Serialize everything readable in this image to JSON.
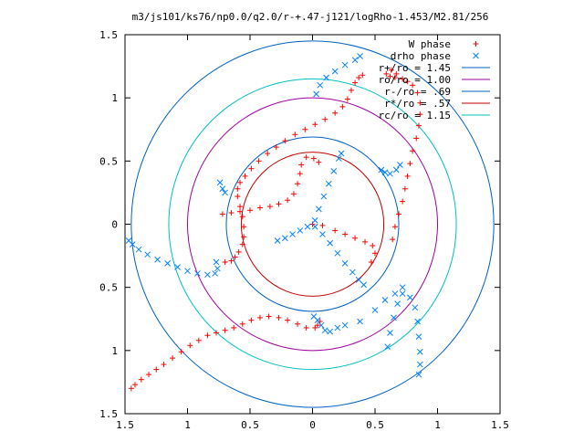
{
  "chart_data": {
    "type": "scatter",
    "title": "m3/js101/ks76/np0.0/q2.0/r-+.47-j121/logRho-1.453/M2.81/256",
    "xlabel": "",
    "ylabel": "",
    "xlim": [
      -1.5,
      1.5
    ],
    "ylim": [
      -1.5,
      1.5
    ],
    "xticks": [
      -1.5,
      -1,
      -0.5,
      0,
      0.5,
      1,
      1.5
    ],
    "yticks": [
      -1.5,
      -1,
      -0.5,
      0,
      0.5,
      1,
      1.5
    ],
    "xtick_labels": [
      "1.5",
      "1",
      "0.5",
      "0",
      "0.5",
      "1",
      "1.5"
    ],
    "ytick_labels": [
      "1.5",
      "1",
      "0.5",
      "0",
      "0.5",
      "1",
      "1.5"
    ],
    "grid": false,
    "legend_position": "top-right",
    "series": [
      {
        "name": "W phase",
        "kind": "points",
        "marker": "plus",
        "color": "#ff0000",
        "points": [
          [
            -1.45,
            -1.3
          ],
          [
            -1.42,
            -1.27
          ],
          [
            -1.37,
            -1.23
          ],
          [
            -1.31,
            -1.19
          ],
          [
            -1.25,
            -1.15
          ],
          [
            -1.19,
            -1.11
          ],
          [
            -1.12,
            -1.06
          ],
          [
            -1.05,
            -1.01
          ],
          [
            -0.98,
            -0.96
          ],
          [
            -0.91,
            -0.92
          ],
          [
            -0.84,
            -0.88
          ],
          [
            -0.77,
            -0.86
          ],
          [
            -0.7,
            -0.84
          ],
          [
            -0.63,
            -0.82
          ],
          [
            -0.56,
            -0.79
          ],
          [
            -0.49,
            -0.76
          ],
          [
            -0.42,
            -0.74
          ],
          [
            -0.35,
            -0.73
          ],
          [
            -0.27,
            -0.74
          ],
          [
            -0.2,
            -0.76
          ],
          [
            -0.12,
            -0.79
          ],
          [
            -0.05,
            -0.82
          ],
          [
            0.02,
            -0.82
          ],
          [
            0.04,
            -0.8
          ],
          [
            0.06,
            -0.77
          ],
          [
            -0.7,
            -0.3
          ],
          [
            -0.65,
            -0.29
          ],
          [
            -0.62,
            -0.26
          ],
          [
            -0.59,
            -0.22
          ],
          [
            -0.56,
            -0.16
          ],
          [
            -0.55,
            -0.1
          ],
          [
            -0.55,
            -0.02
          ],
          [
            -0.56,
            0.06
          ],
          [
            -0.58,
            0.14
          ],
          [
            -0.6,
            0.22
          ],
          [
            -0.6,
            0.28
          ],
          [
            -0.58,
            0.33
          ],
          [
            -0.54,
            0.38
          ],
          [
            -0.49,
            0.44
          ],
          [
            -0.43,
            0.5
          ],
          [
            -0.36,
            0.56
          ],
          [
            -0.29,
            0.61
          ],
          [
            -0.22,
            0.66
          ],
          [
            -0.14,
            0.71
          ],
          [
            -0.06,
            0.75
          ],
          [
            0.02,
            0.79
          ],
          [
            0.1,
            0.83
          ],
          [
            0.18,
            0.88
          ],
          [
            0.24,
            0.93
          ],
          [
            0.28,
            0.99
          ],
          [
            0.31,
            1.06
          ],
          [
            0.34,
            1.12
          ],
          [
            0.37,
            1.16
          ],
          [
            0.4,
            1.18
          ],
          [
            0.64,
            -0.12
          ],
          [
            0.66,
            -0.02
          ],
          [
            0.69,
            0.08
          ],
          [
            0.72,
            0.18
          ],
          [
            0.74,
            0.28
          ],
          [
            0.76,
            0.38
          ],
          [
            0.78,
            0.48
          ],
          [
            0.8,
            0.58
          ],
          [
            0.83,
            0.68
          ],
          [
            0.85,
            0.78
          ],
          [
            0.86,
            0.87
          ],
          [
            0.86,
            0.96
          ],
          [
            0.84,
            1.04
          ],
          [
            0.8,
            1.1
          ],
          [
            0.76,
            1.13
          ],
          [
            0.72,
            1.15
          ],
          [
            0.66,
            1.16
          ],
          [
            0.62,
            1.17
          ],
          [
            0.59,
            1.19
          ],
          [
            0.63,
            1.22
          ],
          [
            0.67,
            1.19
          ],
          [
            -0.72,
            0.08
          ],
          [
            -0.65,
            0.09
          ],
          [
            -0.58,
            0.1
          ],
          [
            -0.5,
            0.11
          ],
          [
            -0.42,
            0.13
          ],
          [
            -0.34,
            0.14
          ],
          [
            -0.27,
            0.16
          ],
          [
            -0.2,
            0.19
          ],
          [
            -0.15,
            0.24
          ],
          [
            -0.12,
            0.32
          ],
          [
            -0.1,
            0.4
          ],
          [
            -0.09,
            0.47
          ],
          [
            -0.05,
            0.53
          ],
          [
            0.01,
            0.52
          ],
          [
            0.05,
            0.49
          ],
          [
            0.0,
            0.0
          ],
          [
            0.08,
            -0.01
          ],
          [
            0.18,
            -0.05
          ],
          [
            0.26,
            -0.08
          ],
          [
            0.34,
            -0.11
          ],
          [
            0.42,
            -0.14
          ],
          [
            0.48,
            -0.17
          ],
          [
            0.5,
            -0.23
          ],
          [
            0.47,
            -0.3
          ]
        ]
      },
      {
        "name": "drho phase",
        "kind": "points",
        "marker": "cross",
        "color": "#0080ff",
        "points": [
          [
            -1.47,
            -0.13
          ],
          [
            -1.44,
            -0.16
          ],
          [
            -1.39,
            -0.2
          ],
          [
            -1.32,
            -0.24
          ],
          [
            -1.24,
            -0.28
          ],
          [
            -1.16,
            -0.31
          ],
          [
            -1.08,
            -0.34
          ],
          [
            -1.0,
            -0.37
          ],
          [
            -0.92,
            -0.39
          ],
          [
            -0.84,
            -0.4
          ],
          [
            -0.78,
            -0.39
          ],
          [
            -0.76,
            -0.35
          ],
          [
            -0.77,
            -0.3
          ],
          [
            0.01,
            -0.73
          ],
          [
            0.04,
            -0.76
          ],
          [
            0.07,
            -0.8
          ],
          [
            0.1,
            -0.84
          ],
          [
            0.14,
            -0.85
          ],
          [
            0.2,
            -0.82
          ],
          [
            0.26,
            -0.8
          ],
          [
            0.38,
            -0.77
          ],
          [
            0.5,
            -0.68
          ],
          [
            0.58,
            -0.6
          ],
          [
            0.66,
            -0.55
          ],
          [
            0.72,
            -0.5
          ],
          [
            0.6,
            -0.97
          ],
          [
            0.62,
            -0.86
          ],
          [
            0.65,
            -0.74
          ],
          [
            0.68,
            -0.63
          ],
          [
            0.72,
            -0.55
          ],
          [
            0.78,
            -0.58
          ],
          [
            0.82,
            -0.66
          ],
          [
            0.84,
            -0.77
          ],
          [
            0.85,
            -0.89
          ],
          [
            0.86,
            -1.01
          ],
          [
            0.86,
            -1.11
          ],
          [
            0.85,
            -1.19
          ],
          [
            0.03,
            1.03
          ],
          [
            0.06,
            1.1
          ],
          [
            0.11,
            1.16
          ],
          [
            0.18,
            1.21
          ],
          [
            0.26,
            1.26
          ],
          [
            0.34,
            1.3
          ],
          [
            0.38,
            1.33
          ],
          [
            -0.28,
            -0.13
          ],
          [
            -0.22,
            -0.11
          ],
          [
            -0.16,
            -0.08
          ],
          [
            -0.1,
            -0.05
          ],
          [
            -0.04,
            -0.02
          ],
          [
            0.02,
            0.03
          ],
          [
            0.05,
            0.12
          ],
          [
            0.09,
            0.22
          ],
          [
            0.13,
            0.32
          ],
          [
            0.17,
            0.42
          ],
          [
            0.21,
            0.52
          ],
          [
            0.23,
            0.56
          ],
          [
            0.02,
            -0.02
          ],
          [
            0.08,
            -0.08
          ],
          [
            0.14,
            -0.15
          ],
          [
            0.2,
            -0.23
          ],
          [
            0.26,
            -0.31
          ],
          [
            0.32,
            -0.38
          ],
          [
            0.37,
            -0.44
          ],
          [
            0.41,
            -0.48
          ],
          [
            -0.74,
            0.33
          ],
          [
            -0.72,
            0.28
          ],
          [
            -0.7,
            0.25
          ],
          [
            0.55,
            0.43
          ],
          [
            0.58,
            0.41
          ],
          [
            0.62,
            0.4
          ],
          [
            0.67,
            0.43
          ],
          [
            0.7,
            0.47
          ]
        ]
      },
      {
        "name": "r+/ro = 1.45",
        "kind": "circle",
        "radius": 1.45,
        "color": "#0060c0"
      },
      {
        "name": "ro/ro = 1.00",
        "kind": "circle",
        "radius": 1.0,
        "color": "#a000a0"
      },
      {
        "name": "r-/ro = .69",
        "kind": "circle",
        "radius": 0.69,
        "color": "#0060c0"
      },
      {
        "name": "r*/ro = .57",
        "kind": "circle",
        "radius": 0.57,
        "color": "#c00000"
      },
      {
        "name": "rc/ro = 1.15",
        "kind": "circle",
        "radius": 1.15,
        "color": "#00c0c0"
      }
    ]
  }
}
